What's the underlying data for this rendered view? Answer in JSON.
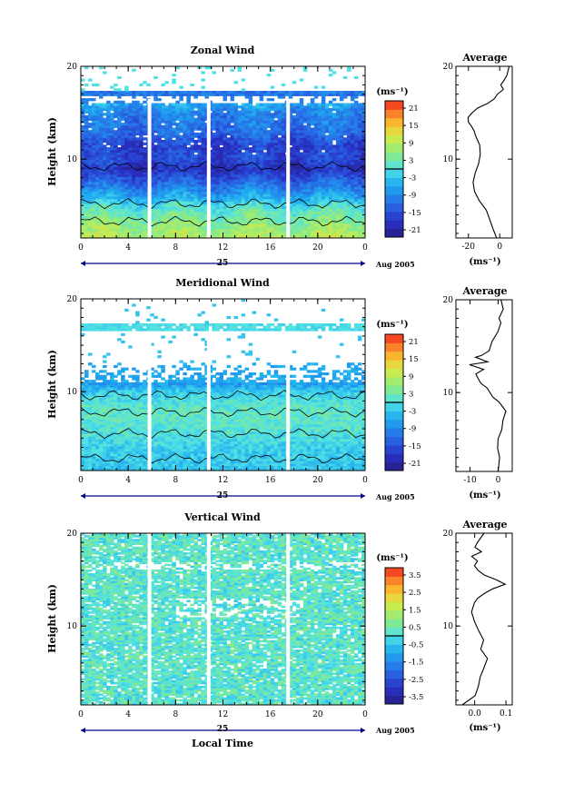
{
  "figure": {
    "xlabel": "Local Time",
    "date_label": "Aug 2005",
    "day_label": "25",
    "ylabel": "Height (km)",
    "unit": "(ms⁻¹)",
    "avg_title": "Average",
    "avg_unit": "(ms⁻¹)"
  },
  "chart_data": [
    {
      "type": "heatmap",
      "title": "Zonal Wind",
      "xlabel": "",
      "ylabel": "Height (km)",
      "x_ticks": [
        "0",
        "4",
        "8",
        "12",
        "16",
        "20",
        "0"
      ],
      "xlim": [
        0,
        24
      ],
      "y_ticks": [
        "10",
        "20"
      ],
      "ylim": [
        1.5,
        20
      ],
      "colorbar": {
        "label": "(ms⁻¹)",
        "ticks": [
          "21",
          "15",
          "9",
          "3",
          "-3",
          "-9",
          "-15",
          "-21"
        ],
        "range": [
          -24,
          24
        ]
      },
      "data_gaps_hours": [
        5.8,
        10.8,
        17.5
      ],
      "profile_by_height": [
        {
          "h": 1.5,
          "v": 9
        },
        {
          "h": 3,
          "v": 6
        },
        {
          "h": 5,
          "v": 0
        },
        {
          "h": 6,
          "v": -6
        },
        {
          "h": 8,
          "v": -15
        },
        {
          "h": 9,
          "v": -19
        },
        {
          "h": 10,
          "v": -16
        },
        {
          "h": 11.5,
          "v": -17
        },
        {
          "h": 13,
          "v": -12
        },
        {
          "h": 15,
          "v": -10
        },
        {
          "h": 16,
          "v": -6
        },
        {
          "h": 17.5,
          "v": 3
        }
      ]
    },
    {
      "type": "heatmap",
      "title": "Meridional Wind",
      "xlabel": "",
      "ylabel": "Height (km)",
      "x_ticks": [
        "0",
        "4",
        "8",
        "12",
        "16",
        "20",
        "0"
      ],
      "xlim": [
        0,
        24
      ],
      "y_ticks": [
        "10",
        "20"
      ],
      "ylim": [
        1.5,
        20
      ],
      "colorbar": {
        "label": "(ms⁻¹)",
        "ticks": [
          "21",
          "15",
          "9",
          "3",
          "-3",
          "-9",
          "-15",
          "-21"
        ],
        "range": [
          -24,
          24
        ]
      },
      "data_gaps_hours": [
        5.8,
        10.8,
        17.5
      ],
      "profile_by_height": [
        {
          "h": 1.5,
          "v": -3
        },
        {
          "h": 4,
          "v": -2
        },
        {
          "h": 6,
          "v": 1
        },
        {
          "h": 8,
          "v": 2
        },
        {
          "h": 10,
          "v": -2
        },
        {
          "h": 11,
          "v": -8
        },
        {
          "h": 12,
          "v": -6
        },
        {
          "h": 15,
          "v": -4
        },
        {
          "h": 16.5,
          "v": -4
        }
      ]
    },
    {
      "type": "heatmap",
      "title": "Vertical Wind",
      "xlabel": "Local Time",
      "ylabel": "Height (km)",
      "x_ticks": [
        "0",
        "4",
        "8",
        "12",
        "16",
        "20",
        "0"
      ],
      "xlim": [
        0,
        24
      ],
      "y_ticks": [
        "10",
        "20"
      ],
      "ylim": [
        1.5,
        20
      ],
      "colorbar": {
        "label": "(ms⁻¹)",
        "ticks": [
          "3.5",
          "2.5",
          "1.5",
          "0.5",
          "-0.5",
          "-1.5",
          "-2.5",
          "-3.5"
        ],
        "range": [
          -4,
          4
        ]
      },
      "data_gaps_hours": [
        5.8,
        10.8,
        17.5
      ],
      "profile_by_height": [
        {
          "h": 1.5,
          "v": 0.4
        },
        {
          "h": 10,
          "v": 0.4
        },
        {
          "h": 20,
          "v": 0.4
        }
      ]
    },
    {
      "type": "line",
      "title": "Average",
      "xlabel": "(ms⁻¹)",
      "ylabel": "",
      "x_ticks": [
        "-20",
        "0"
      ],
      "xlim": [
        -28,
        8
      ],
      "y_ticks": [
        "10",
        "20"
      ],
      "ylim": [
        1.5,
        20
      ],
      "series": [
        {
          "x": [
            -2,
            -4,
            -6,
            -9,
            -13,
            -16,
            -17,
            -16,
            -14,
            -12,
            -13,
            -15,
            -16,
            -18,
            -20,
            -20,
            -18,
            -14,
            -8,
            -4,
            -1,
            2,
            1,
            3,
            5,
            6
          ],
          "y": [
            1.5,
            2.5,
            3.5,
            4.5,
            5.5,
            6.5,
            7.5,
            8.5,
            9.5,
            10.5,
            11.5,
            12.5,
            13,
            13.5,
            14,
            14.5,
            15,
            15.5,
            16,
            16.5,
            17,
            17.5,
            18,
            18.5,
            19,
            20
          ]
        }
      ]
    },
    {
      "type": "line",
      "title": "Average",
      "xlabel": "(ms⁻¹)",
      "ylabel": "",
      "x_ticks": [
        "-10",
        "0"
      ],
      "xlim": [
        -15,
        5
      ],
      "y_ticks": [
        "10",
        "20"
      ],
      "ylim": [
        1.5,
        20
      ],
      "series": [
        {
          "x": [
            0,
            0.5,
            -0.5,
            0,
            1,
            2,
            2.5,
            1.5,
            0,
            -2,
            -4,
            -6,
            -7,
            -8,
            -5,
            -10,
            -4,
            -8,
            -6,
            -3,
            -2,
            0,
            1,
            0,
            2,
            1
          ],
          "y": [
            1.5,
            3,
            4,
            5,
            6,
            7,
            8,
            8.5,
            9,
            9.5,
            10.5,
            11,
            11.5,
            12,
            12.5,
            13,
            13.3,
            13.8,
            14,
            14.5,
            15.5,
            16.5,
            17.5,
            18,
            19,
            20
          ]
        }
      ]
    },
    {
      "type": "line",
      "title": "Average",
      "xlabel": "(ms⁻¹)",
      "ylabel": "",
      "x_ticks": [
        "0.0",
        "0.1"
      ],
      "xlim": [
        -0.06,
        0.12
      ],
      "y_ticks": [
        "10",
        "20"
      ],
      "ylim": [
        1.5,
        20
      ],
      "series": [
        {
          "x": [
            -0.04,
            0.0,
            0.01,
            0.02,
            0.03,
            0.04,
            0.02,
            0.03,
            0.01,
            0.0,
            -0.01,
            0.0,
            0.01,
            0.03,
            0.06,
            0.1,
            0.07,
            0.03,
            0.01,
            0.0,
            0.01,
            -0.01,
            0.02,
            0.0,
            0.01,
            0.03
          ],
          "y": [
            1.5,
            2.5,
            3.5,
            4.5,
            5.5,
            6.5,
            7.5,
            8.5,
            9.5,
            10.5,
            11.5,
            12.5,
            13,
            13.5,
            14,
            14.5,
            15,
            15.5,
            16,
            16.5,
            17,
            17.5,
            18,
            18.5,
            19,
            20
          ]
        }
      ]
    }
  ]
}
